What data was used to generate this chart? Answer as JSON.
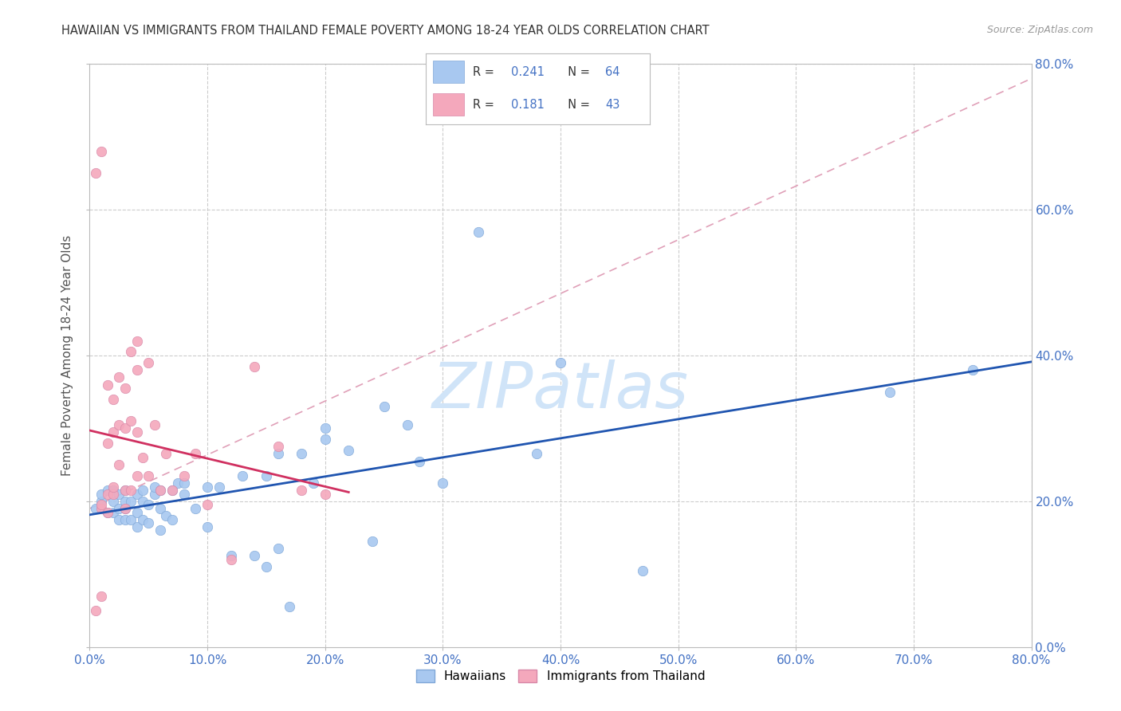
{
  "title": "HAWAIIAN VS IMMIGRANTS FROM THAILAND FEMALE POVERTY AMONG 18-24 YEAR OLDS CORRELATION CHART",
  "source": "Source: ZipAtlas.com",
  "ylabel": "Female Poverty Among 18-24 Year Olds",
  "xlim": [
    0.0,
    0.8
  ],
  "ylim": [
    0.0,
    0.8
  ],
  "xticks": [
    0.0,
    0.1,
    0.2,
    0.3,
    0.4,
    0.5,
    0.6,
    0.7,
    0.8
  ],
  "yticks": [
    0.0,
    0.2,
    0.4,
    0.6,
    0.8
  ],
  "blue_R": 0.241,
  "blue_N": 64,
  "pink_R": 0.181,
  "pink_N": 43,
  "blue_color": "#A8C8F0",
  "pink_color": "#F4A8BC",
  "blue_line_color": "#2055B0",
  "pink_line_color": "#D03060",
  "diag_line_color": "#E0A0B8",
  "watermark_color": "#D0E4F8",
  "legend_label_blue": "Hawaiians",
  "legend_label_pink": "Immigrants from Thailand",
  "background_color": "#FFFFFF",
  "grid_color": "#CCCCCC",
  "title_color": "#333333",
  "axis_label_color": "#555555",
  "tick_color": "#4472C4",
  "blue_scatter_x": [
    0.005,
    0.01,
    0.01,
    0.015,
    0.015,
    0.02,
    0.02,
    0.02,
    0.025,
    0.025,
    0.025,
    0.03,
    0.03,
    0.03,
    0.03,
    0.035,
    0.035,
    0.04,
    0.04,
    0.04,
    0.045,
    0.045,
    0.045,
    0.05,
    0.05,
    0.055,
    0.055,
    0.06,
    0.06,
    0.06,
    0.065,
    0.07,
    0.07,
    0.075,
    0.08,
    0.08,
    0.09,
    0.1,
    0.1,
    0.11,
    0.12,
    0.13,
    0.14,
    0.15,
    0.15,
    0.16,
    0.16,
    0.17,
    0.18,
    0.19,
    0.2,
    0.2,
    0.22,
    0.24,
    0.25,
    0.27,
    0.28,
    0.3,
    0.33,
    0.38,
    0.4,
    0.47,
    0.68,
    0.75
  ],
  "blue_scatter_y": [
    0.19,
    0.2,
    0.21,
    0.185,
    0.215,
    0.185,
    0.2,
    0.215,
    0.175,
    0.19,
    0.21,
    0.175,
    0.19,
    0.2,
    0.215,
    0.175,
    0.2,
    0.165,
    0.185,
    0.21,
    0.175,
    0.2,
    0.215,
    0.17,
    0.195,
    0.21,
    0.22,
    0.16,
    0.19,
    0.215,
    0.18,
    0.175,
    0.215,
    0.225,
    0.21,
    0.225,
    0.19,
    0.165,
    0.22,
    0.22,
    0.125,
    0.235,
    0.125,
    0.11,
    0.235,
    0.135,
    0.265,
    0.055,
    0.265,
    0.225,
    0.285,
    0.3,
    0.27,
    0.145,
    0.33,
    0.305,
    0.255,
    0.225,
    0.57,
    0.265,
    0.39,
    0.105,
    0.35,
    0.38
  ],
  "pink_scatter_x": [
    0.005,
    0.01,
    0.01,
    0.01,
    0.015,
    0.015,
    0.015,
    0.02,
    0.02,
    0.02,
    0.025,
    0.025,
    0.03,
    0.03,
    0.03,
    0.035,
    0.035,
    0.04,
    0.04,
    0.04,
    0.045,
    0.05,
    0.05,
    0.055,
    0.06,
    0.065,
    0.07,
    0.08,
    0.09,
    0.1,
    0.12,
    0.14,
    0.16,
    0.18,
    0.2,
    0.025,
    0.03,
    0.035,
    0.04,
    0.005,
    0.01,
    0.015,
    0.02
  ],
  "pink_scatter_y": [
    0.05,
    0.07,
    0.19,
    0.195,
    0.185,
    0.21,
    0.28,
    0.21,
    0.22,
    0.295,
    0.25,
    0.305,
    0.19,
    0.215,
    0.3,
    0.215,
    0.31,
    0.235,
    0.295,
    0.38,
    0.26,
    0.235,
    0.39,
    0.305,
    0.215,
    0.265,
    0.215,
    0.235,
    0.265,
    0.195,
    0.12,
    0.385,
    0.275,
    0.215,
    0.21,
    0.37,
    0.355,
    0.405,
    0.42,
    0.65,
    0.68,
    0.36,
    0.34
  ]
}
